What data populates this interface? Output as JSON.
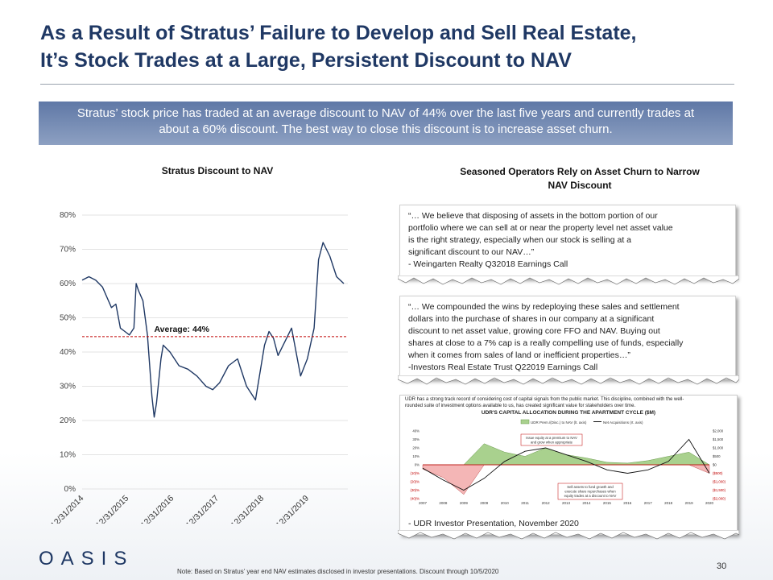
{
  "title": {
    "line1": "As a Result of Stratus’ Failure to Develop and Sell Real Estate,",
    "line2": "It’s Stock Trades at a Large, Persistent Discount to NAV"
  },
  "summary": {
    "line1": "Stratus’ stock price has traded at an average discount to NAV of 44% over the last five years and currently trades at",
    "line2": "about a 60% discount.  The best way to close this discount is to increase asset churn."
  },
  "chart_data": [
    {
      "type": "line",
      "title": "Stratus Discount to NAV",
      "ylim": [
        0,
        80
      ],
      "y_ticks": [
        "0%",
        "10%",
        "20%",
        "30%",
        "40%",
        "50%",
        "60%",
        "70%",
        "80%"
      ],
      "x_ticks": [
        "12/31/2014",
        "12/31/2015",
        "12/31/2016",
        "12/31/2017",
        "12/31/2018",
        "12/31/2019"
      ],
      "average_value": 44.5,
      "average_label": "Average: 44%",
      "series": [
        {
          "name": "Stratus Discount to NAV",
          "x": [
            2014.95,
            2015.1,
            2015.25,
            2015.4,
            2015.5,
            2015.6,
            2015.7,
            2015.8,
            2015.9,
            2016.0,
            2016.1,
            2016.15,
            2016.2,
            2016.3,
            2016.4,
            2016.5,
            2016.55,
            2016.6,
            2016.7,
            2016.75,
            2016.9,
            2017.0,
            2017.1,
            2017.3,
            2017.5,
            2017.7,
            2017.85,
            2018.0,
            2018.2,
            2018.4,
            2018.6,
            2018.8,
            2019.0,
            2019.1,
            2019.2,
            2019.3,
            2019.45,
            2019.6,
            2019.8,
            2019.95,
            2020.1,
            2020.2,
            2020.3,
            2020.45,
            2020.6,
            2020.76
          ],
          "values": [
            61,
            62,
            61,
            59,
            56,
            53,
            54,
            47,
            46,
            45,
            47,
            60,
            58,
            55,
            45,
            27,
            21,
            25,
            38,
            42,
            40,
            38,
            36,
            35,
            33,
            30,
            29,
            31,
            36,
            38,
            30,
            26,
            42,
            46,
            44,
            39,
            43,
            47,
            33,
            38,
            47,
            67,
            72,
            68,
            62,
            60
          ]
        }
      ]
    },
    {
      "type": "bar",
      "title": "UDR'S CAPITAL ALLOCATION DURING THE APARTMENT CYCLE ($M)",
      "categories": [
        "2007",
        "2008",
        "2009",
        "2009",
        "2010",
        "2011",
        "2012",
        "2013",
        "2014",
        "2015",
        "2016",
        "2017",
        "2018",
        "2019",
        "2020"
      ],
      "left_axis_ticks": [
        "40%",
        "30%",
        "20%",
        "10%",
        "0%",
        "(10)%",
        "(20)%",
        "(30)%",
        "(40)%"
      ],
      "right_axis_ticks": [
        "$2,000",
        "$1,500",
        "$1,000",
        "$500",
        "$0",
        "($500)",
        "($1,000)",
        "($1,500)",
        "($2,000)"
      ],
      "legend": [
        "UDR Prem./(Disc.) to NAV (lt. axis)",
        "Net Acquisitions (rt. axis)"
      ],
      "series": [
        {
          "name": "UDR Prem./(Disc.) to NAV (lt. axis)",
          "values": [
            -5,
            -15,
            -35,
            25,
            15,
            10,
            20,
            12,
            8,
            3,
            2,
            5,
            10,
            15,
            -10
          ]
        },
        {
          "name": "Net Acquisitions (rt. axis)",
          "values": [
            -200,
            -900,
            -1500,
            -800,
            200,
            800,
            1000,
            600,
            200,
            -300,
            -500,
            -300,
            200,
            1500,
            -500
          ]
        }
      ]
    }
  ],
  "right_section": {
    "title_line1": "Seasoned Operators Rely on Asset Churn to Narrow",
    "title_line2": "NAV Discount"
  },
  "quote1": {
    "lines": [
      "“… We believe that disposing of assets in the bottom  portion of our",
      "portfolio where we can sell at or near the property level net asset value",
      "is the right strategy, especially when our stock is selling at a",
      "significant discount to our NAV…”",
      "- Weingarten Realty Q32018 Earnings Call"
    ]
  },
  "quote2": {
    "lines": [
      "“… We compounded the wins by redeploying these sales and settlement",
      "dollars into the purchase of shares in our company at a significant",
      "discount to net asset value, growing core FFO and NAV.  Buying out",
      "shares at close to a 7% cap is a really compelling use of funds, especially",
      "when  it comes from sales of land or inefficient properties…”",
      "-Investors Real Estate Trust Q22019 Earnings Call"
    ]
  },
  "udr": {
    "header_line1": "UDR has a strong track record of considering cost of capital signals from the public market. This discipline, combined with the well-",
    "header_line2": "rounded suite of investment options available to us, has created significant value for stakeholders over time.",
    "annotation_top_line1": "Issue equity at a premium to NAV",
    "annotation_top_line2": "and grow when appropriate",
    "annotation_bottom_line1": "Sell assets to fund growth and",
    "annotation_bottom_line2": "execute share repurchases when",
    "annotation_bottom_line3": "equity trades at a discount to NAV",
    "caption": "- UDR Investor Presentation, November  2020"
  },
  "footer": {
    "logo": "OASIS",
    "page_number": "30",
    "note": "Note: Based on Stratus’ year end NAV estimates disclosed in investor presentations.  Discount through 10/5/2020"
  },
  "colors": {
    "title": "#1f3864",
    "summary_band": "#6f86b0",
    "line": "#1f3864",
    "average_line": "#c00000",
    "udr_premium_fill": "#a9d18e",
    "udr_discount_fill": "#f4b6b6"
  }
}
